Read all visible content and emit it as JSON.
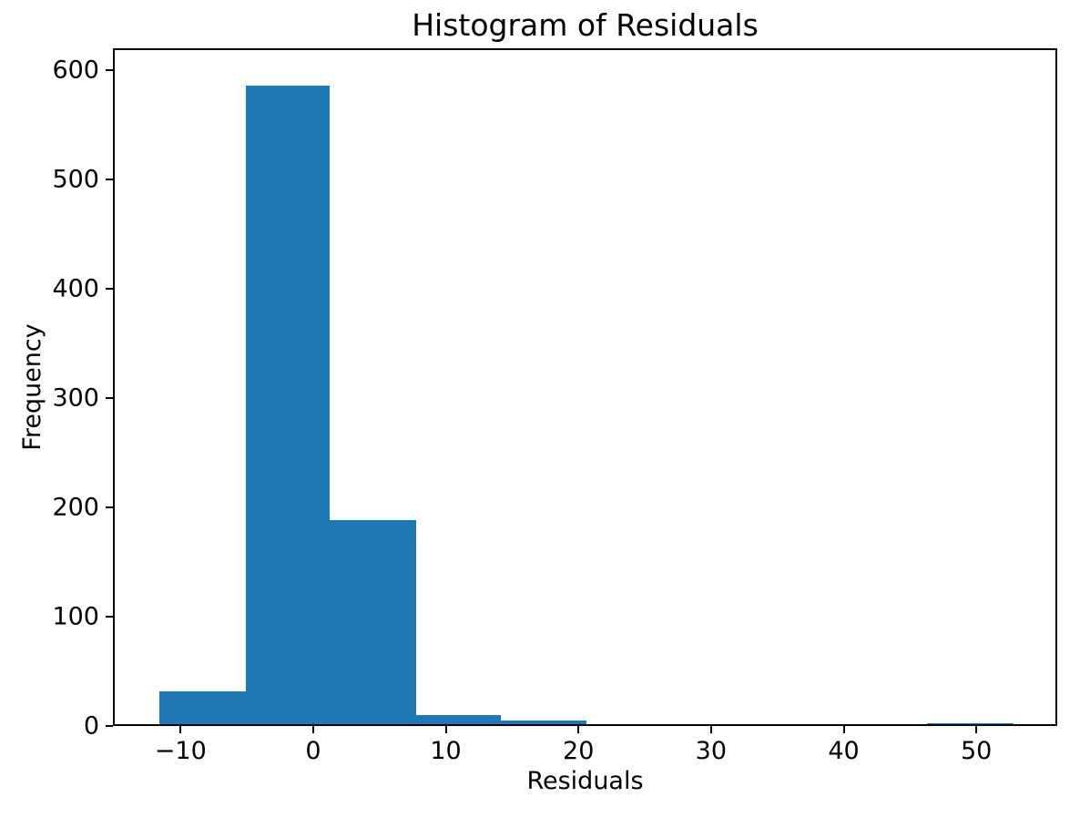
{
  "figure": {
    "background": "#ffffff",
    "text_color": "#000000",
    "spine_color": "#000000"
  },
  "chart_data": {
    "type": "bar",
    "subtype": "histogram",
    "title": "Histogram of Residuals",
    "xlabel": "Residuals",
    "ylabel": "Frequency",
    "bar_color": "#1f77b4",
    "bin_edges": [
      -11.7,
      -5.2,
      1.2,
      7.7,
      14.1,
      20.6,
      27.0,
      33.5,
      40.0,
      46.4,
      52.9
    ],
    "counts": [
      30,
      587,
      188,
      8,
      3,
      0,
      0,
      0,
      0,
      1
    ],
    "x_ticks": [
      {
        "value": -10,
        "label": "−10"
      },
      {
        "value": 0,
        "label": "0"
      },
      {
        "value": 10,
        "label": "10"
      },
      {
        "value": 20,
        "label": "20"
      },
      {
        "value": 30,
        "label": "30"
      },
      {
        "value": 40,
        "label": "40"
      },
      {
        "value": 50,
        "label": "50"
      }
    ],
    "y_ticks": [
      {
        "value": 0,
        "label": "0"
      },
      {
        "value": 100,
        "label": "100"
      },
      {
        "value": 200,
        "label": "200"
      },
      {
        "value": 300,
        "label": "300"
      },
      {
        "value": 400,
        "label": "400"
      },
      {
        "value": 500,
        "label": "500"
      },
      {
        "value": 600,
        "label": "600"
      }
    ],
    "xlim": [
      -15.1,
      56.1
    ],
    "ylim": [
      0,
      620
    ],
    "grid": false,
    "legend": "none"
  }
}
